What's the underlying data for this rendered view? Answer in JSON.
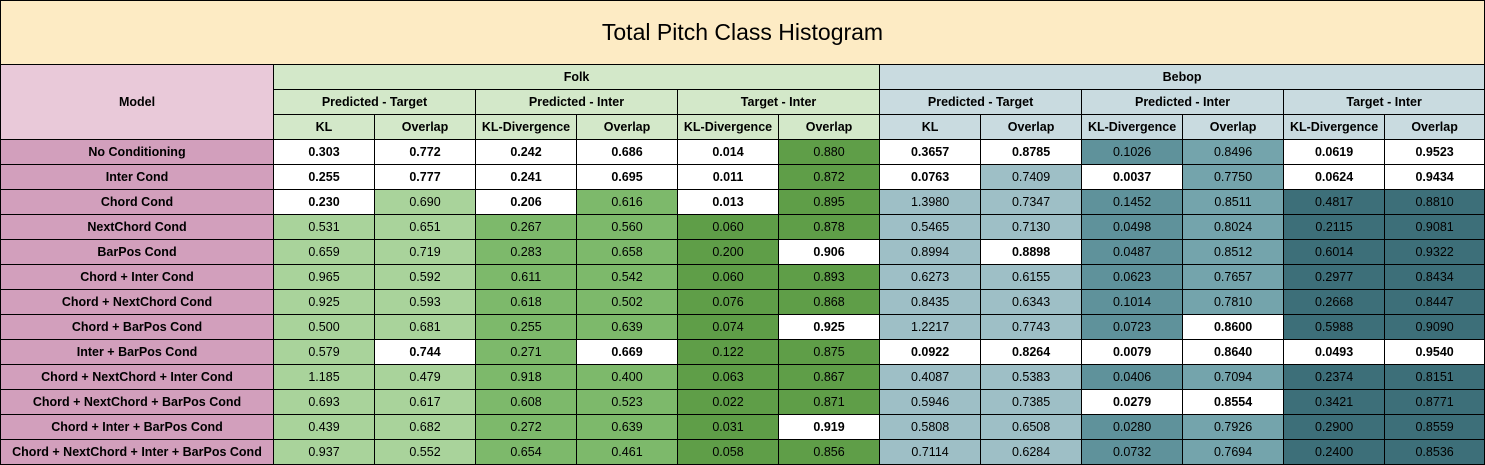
{
  "title": "Total Pitch Class Histogram",
  "header": {
    "model_label": "Model",
    "groups": [
      "Folk",
      "Bebop"
    ],
    "subgroups": [
      "Predicted - Target",
      "Predicted - Inter",
      "Target - Inter",
      "Predicted - Target",
      "Predicted - Inter",
      "Target - Inter"
    ],
    "metrics": [
      "KL",
      "Overlap",
      "KL-Divergence",
      "Overlap",
      "KL-Divergence",
      "Overlap",
      "KL",
      "Overlap",
      "KL-Divergence",
      "Overlap",
      "KL-Divergence",
      "Overlap"
    ]
  },
  "colors": {
    "title_bg": "#fdebc4",
    "model_header_bg": "#e9c9d9",
    "model_cell_bg": "#d29fbc",
    "folk_header_bg": "#d3e8c9",
    "bebop_header_bg": "#c9dbe0",
    "white": "#ffffff"
  },
  "column_colors": [
    "#a9d39b",
    "#a9d39b",
    "#7db96b",
    "#7db96b",
    "#5f9e48",
    "#5f9e48",
    "#9ebfc6",
    "#9ebfc6",
    "#5f929b",
    "#74a4ac",
    "#3d6f79",
    "#3d6f79"
  ],
  "rows": [
    {
      "model": "No Conditioning",
      "values": [
        "0.303",
        "0.772",
        "0.242",
        "0.686",
        "0.014",
        "0.880",
        "0.3657",
        "0.8785",
        "0.1026",
        "0.8496",
        "0.0619",
        "0.9523"
      ],
      "highlight": [
        1,
        1,
        1,
        1,
        1,
        0,
        1,
        1,
        0,
        0,
        1,
        1
      ]
    },
    {
      "model": "Inter Cond",
      "values": [
        "0.255",
        "0.777",
        "0.241",
        "0.695",
        "0.011",
        "0.872",
        "0.0763",
        "0.7409",
        "0.0037",
        "0.7750",
        "0.0624",
        "0.9434"
      ],
      "highlight": [
        1,
        1,
        1,
        1,
        1,
        0,
        1,
        0,
        1,
        0,
        1,
        1
      ]
    },
    {
      "model": "Chord Cond",
      "values": [
        "0.230",
        "0.690",
        "0.206",
        "0.616",
        "0.013",
        "0.895",
        "1.3980",
        "0.7347",
        "0.1452",
        "0.8511",
        "0.4817",
        "0.8810"
      ],
      "highlight": [
        1,
        0,
        1,
        0,
        1,
        0,
        0,
        0,
        0,
        0,
        0,
        0
      ]
    },
    {
      "model": "NextChord Cond",
      "values": [
        "0.531",
        "0.651",
        "0.267",
        "0.560",
        "0.060",
        "0.878",
        "0.5465",
        "0.7130",
        "0.0498",
        "0.8024",
        "0.2115",
        "0.9081"
      ],
      "highlight": [
        0,
        0,
        0,
        0,
        0,
        0,
        0,
        0,
        0,
        0,
        0,
        0
      ]
    },
    {
      "model": "BarPos Cond",
      "values": [
        "0.659",
        "0.719",
        "0.283",
        "0.658",
        "0.200",
        "0.906",
        "0.8994",
        "0.8898",
        "0.0487",
        "0.8512",
        "0.6014",
        "0.9322"
      ],
      "highlight": [
        0,
        0,
        0,
        0,
        0,
        1,
        0,
        1,
        0,
        0,
        0,
        0
      ]
    },
    {
      "model": "Chord + Inter Cond",
      "values": [
        "0.965",
        "0.592",
        "0.611",
        "0.542",
        "0.060",
        "0.893",
        "0.6273",
        "0.6155",
        "0.0623",
        "0.7657",
        "0.2977",
        "0.8434"
      ],
      "highlight": [
        0,
        0,
        0,
        0,
        0,
        0,
        0,
        0,
        0,
        0,
        0,
        0
      ]
    },
    {
      "model": "Chord + NextChord Cond",
      "values": [
        "0.925",
        "0.593",
        "0.618",
        "0.502",
        "0.076",
        "0.868",
        "0.8435",
        "0.6343",
        "0.1014",
        "0.7810",
        "0.2668",
        "0.8447"
      ],
      "highlight": [
        0,
        0,
        0,
        0,
        0,
        0,
        0,
        0,
        0,
        0,
        0,
        0
      ]
    },
    {
      "model": "Chord + BarPos Cond",
      "values": [
        "0.500",
        "0.681",
        "0.255",
        "0.639",
        "0.074",
        "0.925",
        "1.2217",
        "0.7743",
        "0.0723",
        "0.8600",
        "0.5988",
        "0.9090"
      ],
      "highlight": [
        0,
        0,
        0,
        0,
        0,
        1,
        0,
        0,
        0,
        1,
        0,
        0
      ]
    },
    {
      "model": "Inter + BarPos Cond",
      "values": [
        "0.579",
        "0.744",
        "0.271",
        "0.669",
        "0.122",
        "0.875",
        "0.0922",
        "0.8264",
        "0.0079",
        "0.8640",
        "0.0493",
        "0.9540"
      ],
      "highlight": [
        0,
        1,
        0,
        1,
        0,
        0,
        1,
        1,
        1,
        1,
        1,
        1
      ]
    },
    {
      "model": "Chord + NextChord + Inter Cond",
      "values": [
        "1.185",
        "0.479",
        "0.918",
        "0.400",
        "0.063",
        "0.867",
        "0.4087",
        "0.5383",
        "0.0406",
        "0.7094",
        "0.2374",
        "0.8151"
      ],
      "highlight": [
        0,
        0,
        0,
        0,
        0,
        0,
        0,
        0,
        0,
        0,
        0,
        0
      ]
    },
    {
      "model": "Chord + NextChord + BarPos Cond",
      "values": [
        "0.693",
        "0.617",
        "0.608",
        "0.523",
        "0.022",
        "0.871",
        "0.5946",
        "0.7385",
        "0.0279",
        "0.8554",
        "0.3421",
        "0.8771"
      ],
      "highlight": [
        0,
        0,
        0,
        0,
        0,
        0,
        0,
        0,
        1,
        1,
        0,
        0
      ]
    },
    {
      "model": "Chord + Inter + BarPos Cond",
      "values": [
        "0.439",
        "0.682",
        "0.272",
        "0.639",
        "0.031",
        "0.919",
        "0.5808",
        "0.6508",
        "0.0280",
        "0.7926",
        "0.2900",
        "0.8559"
      ],
      "highlight": [
        0,
        0,
        0,
        0,
        0,
        1,
        0,
        0,
        0,
        0,
        0,
        0
      ]
    },
    {
      "model": "Chord + NextChord + Inter + BarPos Cond",
      "values": [
        "0.937",
        "0.552",
        "0.654",
        "0.461",
        "0.058",
        "0.856",
        "0.7114",
        "0.6284",
        "0.0732",
        "0.7694",
        "0.2400",
        "0.8536"
      ],
      "highlight": [
        0,
        0,
        0,
        0,
        0,
        0,
        0,
        0,
        0,
        0,
        0,
        0
      ]
    }
  ]
}
